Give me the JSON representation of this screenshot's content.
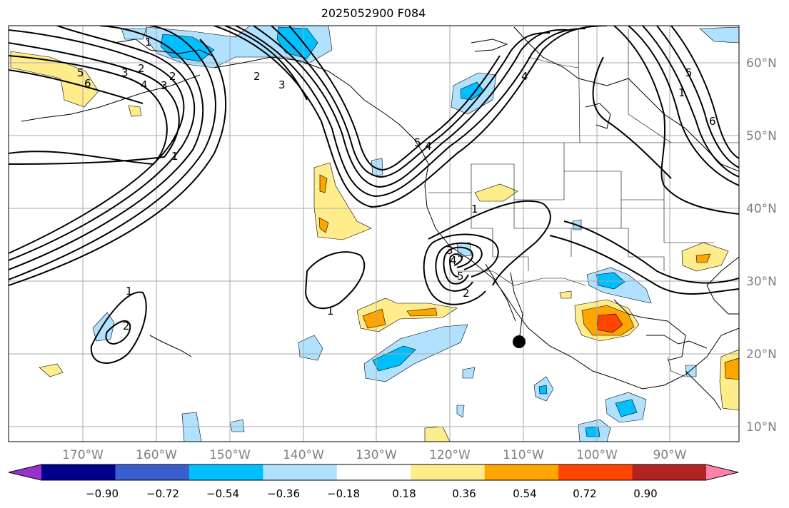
{
  "title": "2025052900 F084",
  "map": {
    "lon_labels": [
      "170°W",
      "160°W",
      "150°W",
      "140°W",
      "130°W",
      "120°W",
      "110°W",
      "100°W",
      "90°W"
    ],
    "lat_labels": [
      "60°N",
      "50°N",
      "40°N",
      "30°N",
      "20°N",
      "10°N"
    ],
    "contour_labels": [
      "1",
      "2",
      "3",
      "4",
      "5",
      "6",
      "1",
      "2",
      "3",
      "4",
      "5",
      "6",
      "1",
      "1",
      "2",
      "3",
      "4",
      "5",
      "1",
      "2",
      "1",
      "2",
      "3",
      "4",
      "5"
    ]
  },
  "colorbar": {
    "colors": [
      "#9932cc",
      "#00008b",
      "#3a5fcd",
      "#00bfff",
      "#b0e2ff",
      "#ffffff",
      "#ffec8b",
      "#ffa500",
      "#ff4500",
      "#b22222",
      "#ff82ab"
    ],
    "tick_labels": [
      "−0.90",
      "−0.72",
      "−0.54",
      "−0.36",
      "−0.18",
      "0.18",
      "0.36",
      "0.54",
      "0.72",
      "0.90"
    ]
  }
}
